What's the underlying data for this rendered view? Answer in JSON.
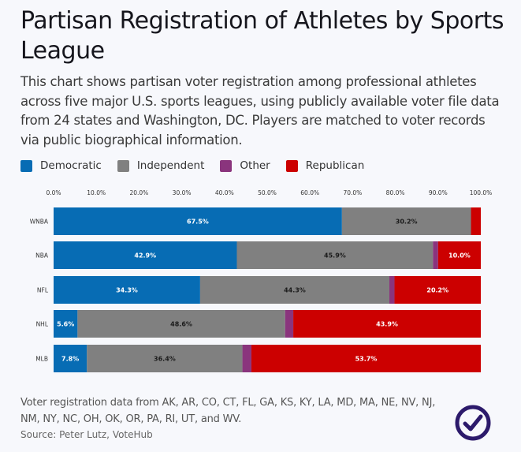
{
  "header": {
    "title": "Partisan Registration of Athletes by Sports League",
    "subtitle": "This chart shows partisan voter registration among professional athletes across five major U.S. sports leagues, using publicly available voter file data from 24 states and Washington, DC. Players are matched to voter records via public biographical information."
  },
  "legend": [
    {
      "label": "Democratic",
      "color": "#076cb4"
    },
    {
      "label": "Independent",
      "color": "#808080"
    },
    {
      "label": "Other",
      "color": "#8a347d"
    },
    {
      "label": "Republican",
      "color": "#cc0000"
    }
  ],
  "footer": {
    "note": "Voter registration data from AK, AR, CO, CT, FL, GA, KS, KY, LA, MD, MA, NE, NV, NJ, NM, NY, NC, OH, OK, OR, PA, RI, UT, and WV.",
    "source": "Source: Peter Lutz, VoteHub",
    "logo_icon": "checkmark-circle-icon"
  },
  "chart_data": {
    "type": "bar",
    "orientation": "horizontal",
    "stacked": true,
    "title": "Partisan Registration of Athletes by Sports League",
    "xlabel": "",
    "ylabel": "",
    "xlim": [
      0,
      100
    ],
    "x_ticks": [
      "0.0%",
      "10.0%",
      "20.0%",
      "30.0%",
      "40.0%",
      "50.0%",
      "60.0%",
      "70.0%",
      "80.0%",
      "90.0%",
      "100.0%"
    ],
    "x_tick_position": "top",
    "grid": false,
    "legend_position": "top-left",
    "categories": [
      "WNBA",
      "NBA",
      "NFL",
      "NHL",
      "MLB"
    ],
    "series": [
      {
        "name": "Democratic",
        "color": "#076cb4",
        "label_color": "#ffffff",
        "values": [
          67.5,
          42.9,
          34.3,
          5.6,
          7.8
        ],
        "labels": [
          "67.5%",
          "42.9%",
          "34.3%",
          "5.6%",
          "7.8%"
        ]
      },
      {
        "name": "Independent",
        "color": "#808080",
        "label_color": "#1a1a1a",
        "values": [
          30.2,
          45.9,
          44.3,
          48.6,
          36.4
        ],
        "labels": [
          "30.2%",
          "45.9%",
          "44.3%",
          "48.6%",
          "36.4%"
        ]
      },
      {
        "name": "Other",
        "color": "#8a347d",
        "label_color": "#ffffff",
        "values": [
          0.0,
          1.2,
          1.2,
          1.9,
          2.1
        ],
        "labels": [
          "",
          "",
          "",
          "",
          ""
        ]
      },
      {
        "name": "Republican",
        "color": "#cc0000",
        "label_color": "#ffffff",
        "values": [
          2.3,
          10.0,
          20.2,
          43.9,
          53.7
        ],
        "labels": [
          "",
          "10.0%",
          "20.2%",
          "43.9%",
          "53.7%"
        ]
      }
    ]
  }
}
